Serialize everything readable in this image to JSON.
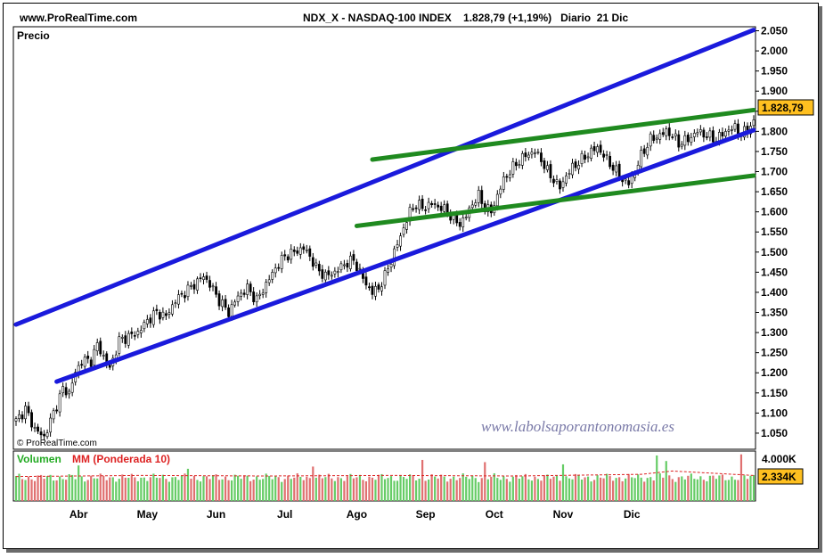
{
  "header": {
    "site": "www.ProRealTime.com",
    "title": "NDX_X - NASDAQ-100 INDEX    1.828,79 (+1,19%)   Diario  21 Dic"
  },
  "panels": {
    "price_label": "Precio",
    "copyright": "© ProRealTime.com",
    "watermark": "www.labolsaporantonomasia.es",
    "volume_label": "Volumen",
    "mm_label": "MM (Ponderada 10)"
  },
  "colors": {
    "channel": "#1a1adc",
    "triangle": "#1f8a1f",
    "price_tag": "#ffc020",
    "volume_up": "#66cc66",
    "volume_down": "#e07070",
    "volume_mm": "#dd2222",
    "volume_label": "#22aa22"
  },
  "chart_data": [
    {
      "type": "candlestick",
      "panel": "price",
      "x_labels": [
        "Abr",
        "May",
        "Jun",
        "Jul",
        "Ago",
        "Sep",
        "Oct",
        "Nov",
        "Dic"
      ],
      "y_ticks": [
        "1.050",
        "1.100",
        "1.150",
        "1.200",
        "1.250",
        "1.300",
        "1.350",
        "1.400",
        "1.450",
        "1.500",
        "1.550",
        "1.600",
        "1.650",
        "1.700",
        "1.750",
        "1.800",
        "1.850",
        "1.900",
        "1.950",
        "2.000",
        "2.050"
      ],
      "ylim": [
        1010,
        2060
      ],
      "last_price_label": "1.828,79",
      "anchors": [
        [
          0,
          1080
        ],
        [
          3,
          1110
        ],
        [
          6,
          1060
        ],
        [
          9,
          1040
        ],
        [
          12,
          1100
        ],
        [
          15,
          1160
        ],
        [
          17,
          1150
        ],
        [
          19,
          1200
        ],
        [
          21,
          1230
        ],
        [
          24,
          1230
        ],
        [
          26,
          1270
        ],
        [
          28,
          1240
        ],
        [
          30,
          1210
        ],
        [
          33,
          1280
        ],
        [
          36,
          1290
        ],
        [
          39,
          1300
        ],
        [
          42,
          1330
        ],
        [
          45,
          1350
        ],
        [
          48,
          1340
        ],
        [
          51,
          1380
        ],
        [
          54,
          1400
        ],
        [
          57,
          1420
        ],
        [
          60,
          1440
        ],
        [
          62,
          1420
        ],
        [
          65,
          1380
        ],
        [
          68,
          1350
        ],
        [
          71,
          1390
        ],
        [
          74,
          1410
        ],
        [
          77,
          1380
        ],
        [
          80,
          1420
        ],
        [
          83,
          1460
        ],
        [
          86,
          1490
        ],
        [
          89,
          1500
        ],
        [
          92,
          1510
        ],
        [
          94,
          1490
        ],
        [
          96,
          1460
        ],
        [
          99,
          1440
        ],
        [
          102,
          1450
        ],
        [
          105,
          1470
        ],
        [
          108,
          1480
        ],
        [
          110,
          1450
        ],
        [
          112,
          1420
        ],
        [
          114,
          1400
        ],
        [
          116,
          1410
        ],
        [
          118,
          1440
        ],
        [
          120,
          1480
        ],
        [
          122,
          1520
        ],
        [
          124,
          1560
        ],
        [
          126,
          1600
        ],
        [
          128,
          1620
        ],
        [
          130,
          1610
        ],
        [
          133,
          1620
        ],
        [
          136,
          1610
        ],
        [
          138,
          1600
        ],
        [
          140,
          1580
        ],
        [
          142,
          1570
        ],
        [
          144,
          1590
        ],
        [
          146,
          1620
        ],
        [
          148,
          1640
        ],
        [
          150,
          1610
        ],
        [
          152,
          1600
        ],
        [
          154,
          1640
        ],
        [
          156,
          1680
        ],
        [
          158,
          1700
        ],
        [
          160,
          1720
        ],
        [
          163,
          1740
        ],
        [
          166,
          1750
        ],
        [
          168,
          1730
        ],
        [
          170,
          1700
        ],
        [
          172,
          1680
        ],
        [
          174,
          1660
        ],
        [
          176,
          1690
        ],
        [
          178,
          1710
        ],
        [
          181,
          1730
        ],
        [
          184,
          1750
        ],
        [
          186,
          1760
        ],
        [
          188,
          1740
        ],
        [
          190,
          1720
        ],
        [
          192,
          1700
        ],
        [
          194,
          1680
        ],
        [
          196,
          1670
        ],
        [
          198,
          1700
        ],
        [
          200,
          1740
        ],
        [
          203,
          1780
        ],
        [
          206,
          1790
        ],
        [
          208,
          1800
        ],
        [
          210,
          1790
        ],
        [
          212,
          1770
        ],
        [
          215,
          1780
        ],
        [
          218,
          1800
        ],
        [
          221,
          1790
        ],
        [
          224,
          1780
        ],
        [
          227,
          1800
        ],
        [
          230,
          1810
        ],
        [
          232,
          1790
        ],
        [
          234,
          1805
        ],
        [
          236,
          1828.79
        ]
      ],
      "lines": [
        {
          "name": "",
          "role": "channel-upper",
          "from": [
            0,
            1320
          ],
          "to": [
            236,
            2052
          ]
        },
        {
          "name": "",
          "role": "channel-lower",
          "from": [
            13,
            1178
          ],
          "to": [
            236,
            1803
          ]
        },
        {
          "name": "",
          "role": "triangle-upper",
          "from": [
            114,
            1730
          ],
          "to": [
            236,
            1853
          ]
        },
        {
          "name": "",
          "role": "triangle-lower",
          "from": [
            109,
            1565
          ],
          "to": [
            236,
            1690
          ]
        }
      ]
    },
    {
      "type": "bar",
      "panel": "volume",
      "y_ticks": [
        "4.000K"
      ],
      "ylim": [
        0,
        4500
      ],
      "last_volume_label": "2.334K",
      "base_volume": 2100,
      "spikes": [
        [
          20,
          3200
        ],
        [
          55,
          2900
        ],
        [
          95,
          3100
        ],
        [
          130,
          3700
        ],
        [
          150,
          3500
        ],
        [
          175,
          3300
        ],
        [
          205,
          4100
        ],
        [
          208,
          3600
        ],
        [
          232,
          4200
        ],
        [
          236,
          2334
        ]
      ],
      "mm": [
        [
          0,
          2200
        ],
        [
          40,
          2300
        ],
        [
          80,
          2250
        ],
        [
          120,
          2300
        ],
        [
          160,
          2250
        ],
        [
          200,
          2400
        ],
        [
          210,
          2700
        ],
        [
          236,
          2300
        ]
      ]
    }
  ]
}
